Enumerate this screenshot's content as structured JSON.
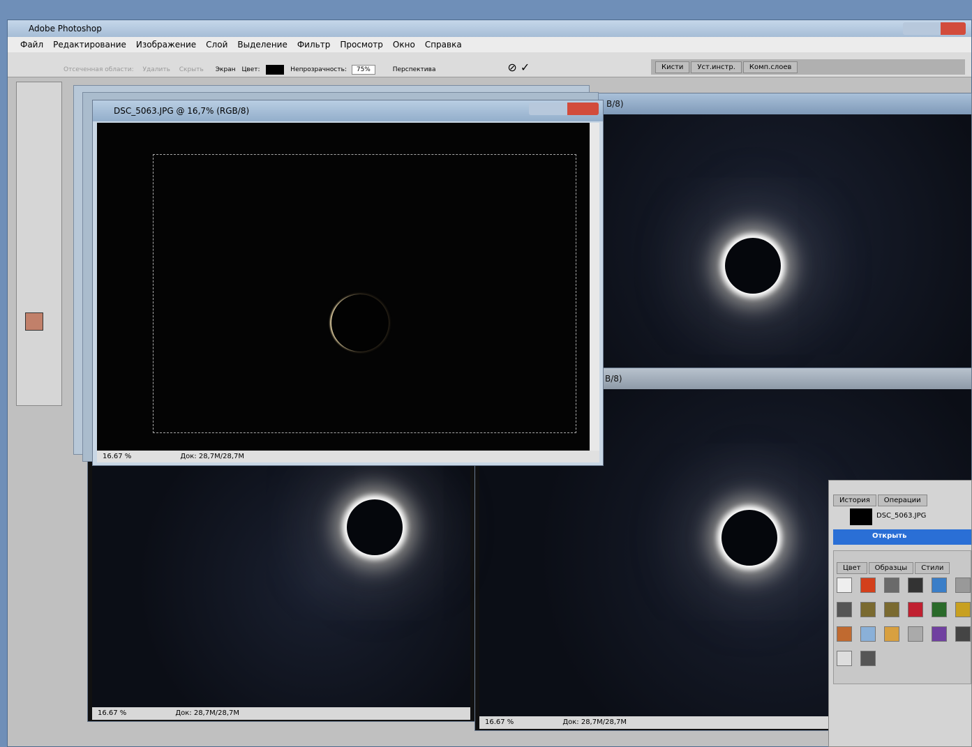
{
  "app": {
    "title": "Adobe Photoshop"
  },
  "menu": [
    "Файл",
    "Редактирование",
    "Изображение",
    "Слой",
    "Выделение",
    "Фильтр",
    "Просмотр",
    "Окно",
    "Справка"
  ],
  "options_bar": {
    "crop_area_label": "Отсеченная области:",
    "delete": "Удалить",
    "hide": "Скрыть",
    "shield": "Экран",
    "color_label": "Цвет:",
    "opacity_label": "Непрозрачность:",
    "opacity": "75%",
    "perspective": "Перспектива"
  },
  "palette_well": [
    "Кисти",
    "Уст.инстр.",
    "Комп.слоев"
  ],
  "documents": {
    "front": {
      "title": "DSC_5063.JPG @ 16,7% (RGB/8)",
      "zoom": "16.67 %",
      "doc_size": "Док: 28,7M/28,7M"
    },
    "top_right": {
      "title": "B/8)"
    },
    "bottom_left": {
      "zoom": "16.67 %",
      "doc_size": "Док: 28,7M/28,7M"
    },
    "bottom_right": {
      "title": "B/8)",
      "zoom": "16.67 %",
      "doc_size": "Док: 28,7M/28,7M"
    }
  },
  "history_panel": {
    "tabs": [
      "История",
      "Операции"
    ],
    "snapshot": "DSC_5063.JPG",
    "items": [
      "Открыть"
    ]
  },
  "styles_panel": {
    "tabs": [
      "Цвет",
      "Образцы",
      "Стили"
    ]
  }
}
